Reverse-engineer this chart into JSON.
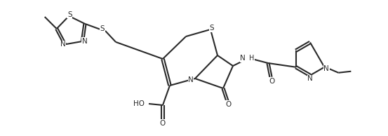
{
  "figsize": [
    5.53,
    1.94
  ],
  "dpi": 100,
  "bg": "#ffffff",
  "lc": "#2a2a2a",
  "lw": 1.5,
  "fs": 7.0,
  "xlim": [
    0,
    5.53
  ],
  "ylim": [
    0,
    1.94
  ]
}
